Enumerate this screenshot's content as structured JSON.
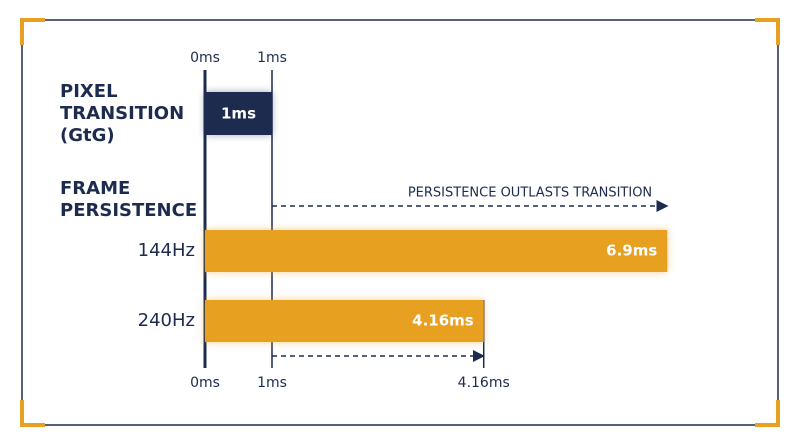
{
  "top_axis": {
    "ticks": [
      {
        "value": 0,
        "label": "0ms"
      },
      {
        "value": 1,
        "label": "1ms"
      }
    ]
  },
  "bottom_axis": {
    "ticks": [
      {
        "value": 0,
        "label": "0ms"
      },
      {
        "value": 1,
        "label": "1ms"
      },
      {
        "value": 4.16,
        "label": "4.16ms"
      }
    ]
  },
  "pixel_transition": {
    "title_lines": [
      "PIXEL",
      "TRANSITION",
      "(GtG)"
    ],
    "value": 1,
    "value_label": "1ms"
  },
  "frame_persistence": {
    "title_lines": [
      "FRAME",
      "PERSISTENCE"
    ],
    "annotation": "PERSISTENCE OUTLASTS TRANSITION",
    "rows": [
      {
        "name": "144Hz",
        "value": 6.9,
        "value_label": "6.9ms"
      },
      {
        "name": "240Hz",
        "value": 4.16,
        "value_label": "4.16ms"
      }
    ]
  }
}
